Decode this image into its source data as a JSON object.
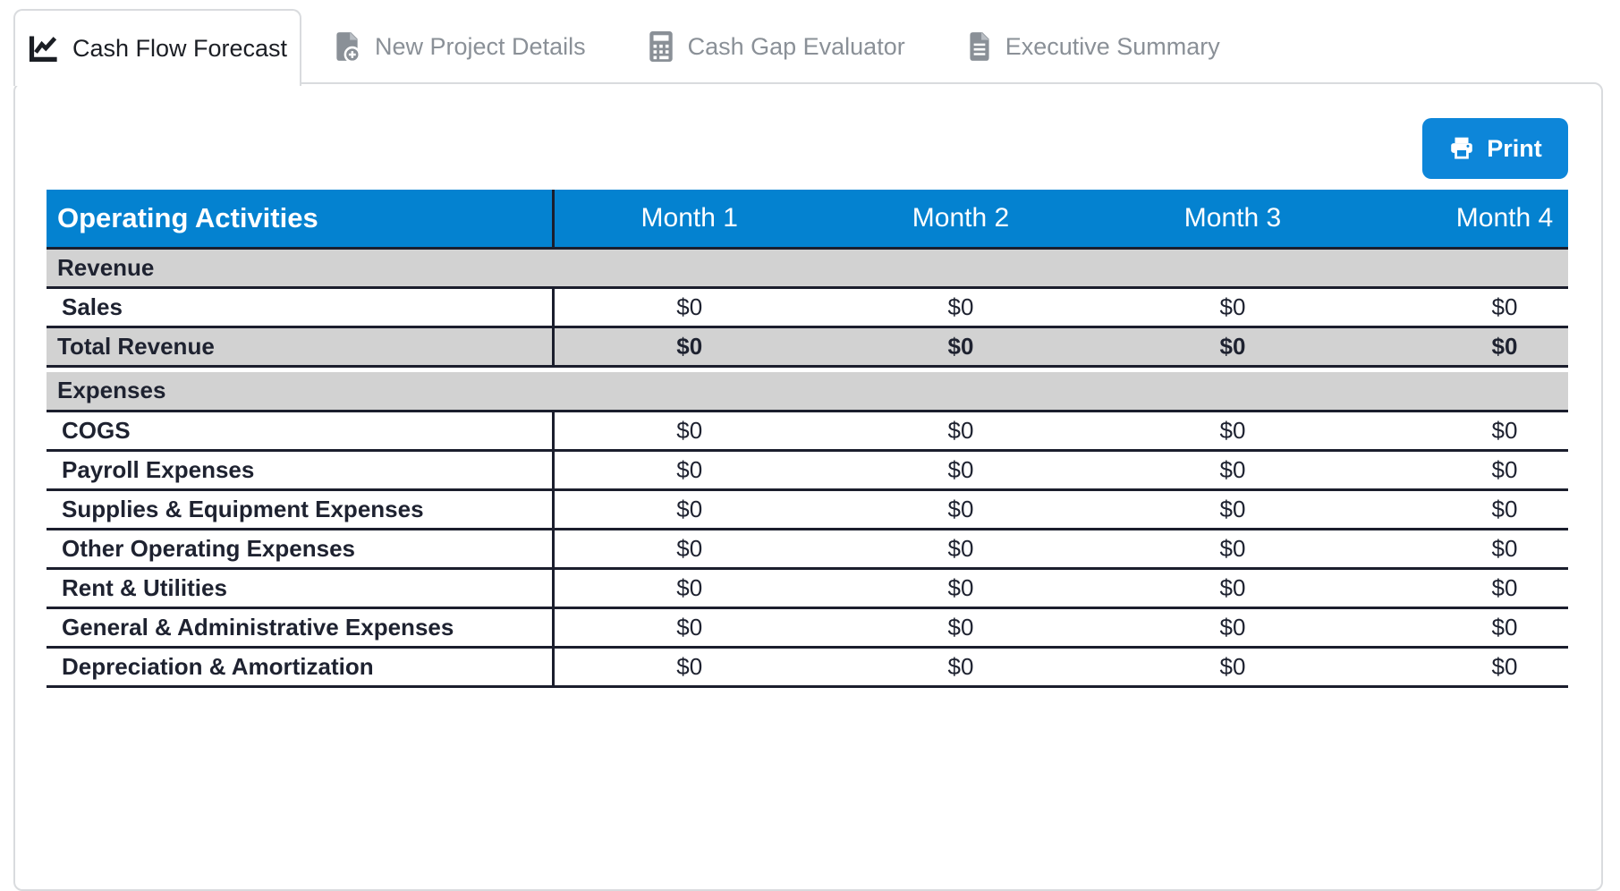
{
  "colors": {
    "header_blue": "#0482d0",
    "print_button_blue": "#0d86d9",
    "section_row_gray": "#d2d2d2",
    "row_border_dark": "#1b1e2d",
    "inactive_tab_gray": "#8a9097",
    "panel_border_gray": "#d9dbde"
  },
  "tabs": {
    "items": [
      {
        "label": "Cash Flow Forecast",
        "icon": "chart-line-icon",
        "active": true
      },
      {
        "label": "New Project Details",
        "icon": "file-plus-icon",
        "active": false
      },
      {
        "label": "Cash Gap Evaluator",
        "icon": "calculator-icon",
        "active": false
      },
      {
        "label": "Executive Summary",
        "icon": "file-lines-icon",
        "active": false
      }
    ]
  },
  "toolbar": {
    "print_label": "Print"
  },
  "table": {
    "title": "Operating Activities",
    "months": [
      "Month 1",
      "Month 2",
      "Month 3",
      "Month 4"
    ],
    "rows": [
      {
        "type": "section",
        "label": "Revenue"
      },
      {
        "type": "data",
        "label": "Sales",
        "values": [
          "$0",
          "$0",
          "$0",
          "$0"
        ]
      },
      {
        "type": "total",
        "label": "Total Revenue",
        "values": [
          "$0",
          "$0",
          "$0",
          "$0"
        ]
      },
      {
        "type": "spacer"
      },
      {
        "type": "section",
        "label": "Expenses"
      },
      {
        "type": "data",
        "label": "COGS",
        "values": [
          "$0",
          "$0",
          "$0",
          "$0"
        ]
      },
      {
        "type": "data",
        "label": "Payroll Expenses",
        "values": [
          "$0",
          "$0",
          "$0",
          "$0"
        ]
      },
      {
        "type": "data",
        "label": "Supplies & Equipment Expenses",
        "values": [
          "$0",
          "$0",
          "$0",
          "$0"
        ]
      },
      {
        "type": "data",
        "label": "Other Operating Expenses",
        "values": [
          "$0",
          "$0",
          "$0",
          "$0"
        ]
      },
      {
        "type": "data",
        "label": "Rent & Utilities",
        "values": [
          "$0",
          "$0",
          "$0",
          "$0"
        ]
      },
      {
        "type": "data",
        "label": "General & Administrative Expenses",
        "values": [
          "$0",
          "$0",
          "$0",
          "$0"
        ]
      },
      {
        "type": "data",
        "label": "Depreciation & Amortization",
        "values": [
          "$0",
          "$0",
          "$0",
          "$0"
        ]
      },
      {
        "type": "spacer"
      },
      {
        "type": "partial",
        "label": "",
        "values": [
          "",
          "",
          "",
          ""
        ]
      }
    ]
  }
}
